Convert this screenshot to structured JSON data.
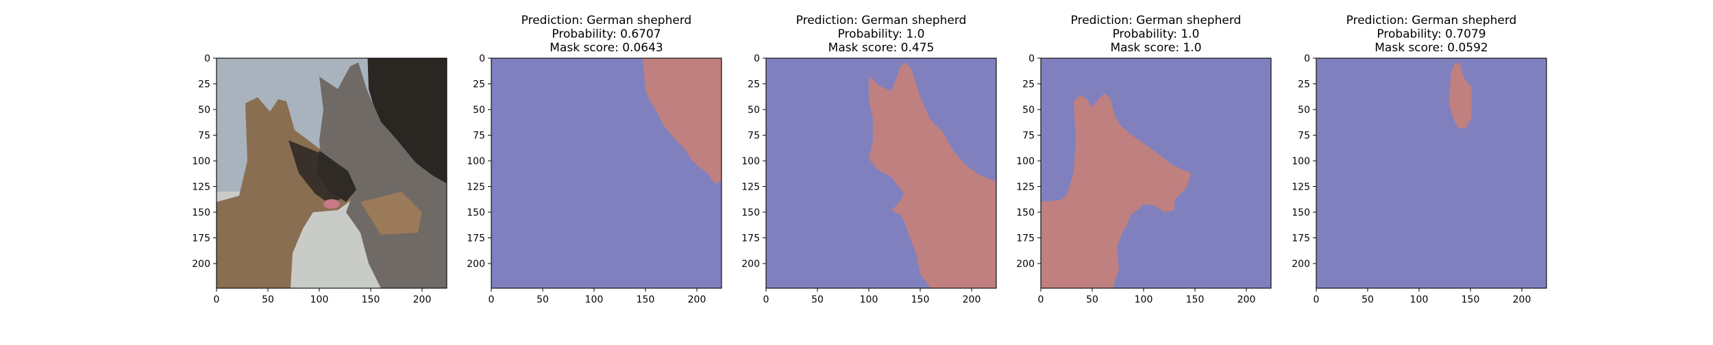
{
  "colors": {
    "mask_background": "#8080bf",
    "mask_foreground": "#bf807f",
    "photo_sky": "#a9b3bd",
    "photo_dark": "#2a2622",
    "photo_fur_tan": "#8a6e52",
    "photo_fur_gray": "#6f6a66"
  },
  "chart_data": [
    {
      "type": "heatmap",
      "content": "photo",
      "icon": "two-german-shepherd-dogs-photo",
      "xlim": [
        0,
        224
      ],
      "ylim": [
        224,
        0
      ],
      "x_ticks": [
        "0",
        "50",
        "100",
        "150",
        "200"
      ],
      "y_ticks": [
        "0",
        "25",
        "50",
        "75",
        "100",
        "125",
        "150",
        "175",
        "200"
      ],
      "x_tick_values": [
        0,
        50,
        100,
        150,
        200
      ],
      "y_tick_values": [
        0,
        25,
        50,
        75,
        100,
        125,
        150,
        175,
        200
      ],
      "title_lines": []
    },
    {
      "type": "heatmap",
      "content": "mask",
      "title_lines": [
        "Prediction: German shepherd",
        "Probability: 0.6707",
        "Mask score: 0.0643"
      ],
      "xlim": [
        0,
        224
      ],
      "ylim": [
        224,
        0
      ],
      "x_ticks": [
        "0",
        "50",
        "100",
        "150",
        "200"
      ],
      "y_ticks": [
        "0",
        "25",
        "50",
        "75",
        "100",
        "125",
        "150",
        "175",
        "200"
      ],
      "x_tick_values": [
        0,
        50,
        100,
        150,
        200
      ],
      "y_tick_values": [
        0,
        25,
        50,
        75,
        100,
        125,
        150,
        175,
        200
      ],
      "mask_region": [
        [
          147,
          0
        ],
        [
          224,
          0
        ],
        [
          224,
          120
        ],
        [
          218,
          122
        ],
        [
          210,
          112
        ],
        [
          200,
          104
        ],
        [
          194,
          98
        ],
        [
          188,
          88
        ],
        [
          178,
          78
        ],
        [
          168,
          66
        ],
        [
          162,
          54
        ],
        [
          155,
          42
        ],
        [
          150,
          32
        ],
        [
          149,
          18
        ]
      ]
    },
    {
      "type": "heatmap",
      "content": "mask",
      "title_lines": [
        "Prediction: German shepherd",
        "Probability: 1.0",
        "Mask score: 0.475"
      ],
      "xlim": [
        0,
        224
      ],
      "ylim": [
        224,
        0
      ],
      "x_ticks": [
        "0",
        "50",
        "100",
        "150",
        "200"
      ],
      "y_ticks": [
        "0",
        "25",
        "50",
        "75",
        "100",
        "125",
        "150",
        "175",
        "200"
      ],
      "x_tick_values": [
        0,
        50,
        100,
        150,
        200
      ],
      "y_tick_values": [
        0,
        25,
        50,
        75,
        100,
        125,
        150,
        175,
        200
      ],
      "mask_region": [
        [
          100,
          17
        ],
        [
          110,
          27
        ],
        [
          122,
          32
        ],
        [
          131,
          8
        ],
        [
          136,
          4
        ],
        [
          142,
          12
        ],
        [
          150,
          38
        ],
        [
          160,
          60
        ],
        [
          172,
          72
        ],
        [
          182,
          90
        ],
        [
          194,
          104
        ],
        [
          208,
          114
        ],
        [
          224,
          120
        ],
        [
          224,
          224
        ],
        [
          160,
          224
        ],
        [
          150,
          210
        ],
        [
          146,
          190
        ],
        [
          140,
          175
        ],
        [
          135,
          160
        ],
        [
          130,
          152
        ],
        [
          122,
          148
        ],
        [
          130,
          140
        ],
        [
          134,
          132
        ],
        [
          122,
          116
        ],
        [
          108,
          108
        ],
        [
          100,
          98
        ],
        [
          104,
          80
        ],
        [
          104,
          60
        ],
        [
          100,
          40
        ]
      ]
    },
    {
      "type": "heatmap",
      "content": "mask",
      "title_lines": [
        "Prediction: German shepherd",
        "Probability: 1.0",
        "Mask score: 1.0"
      ],
      "xlim": [
        0,
        224
      ],
      "ylim": [
        224,
        0
      ],
      "x_ticks": [
        "0",
        "50",
        "100",
        "150",
        "200"
      ],
      "y_ticks": [
        "0",
        "25",
        "50",
        "75",
        "100",
        "125",
        "150",
        "175",
        "200"
      ],
      "x_tick_values": [
        0,
        50,
        100,
        150,
        200
      ],
      "y_tick_values": [
        0,
        25,
        50,
        75,
        100,
        125,
        150,
        175,
        200
      ],
      "mask_region": [
        [
          32,
          42
        ],
        [
          38,
          36
        ],
        [
          45,
          40
        ],
        [
          50,
          48
        ],
        [
          56,
          40
        ],
        [
          62,
          34
        ],
        [
          68,
          40
        ],
        [
          72,
          56
        ],
        [
          78,
          66
        ],
        [
          90,
          76
        ],
        [
          110,
          90
        ],
        [
          128,
          104
        ],
        [
          146,
          112
        ],
        [
          142,
          126
        ],
        [
          130,
          138
        ],
        [
          130,
          148
        ],
        [
          120,
          150
        ],
        [
          112,
          144
        ],
        [
          100,
          142
        ],
        [
          94,
          148
        ],
        [
          88,
          152
        ],
        [
          84,
          162
        ],
        [
          80,
          168
        ],
        [
          74,
          184
        ],
        [
          76,
          205
        ],
        [
          70,
          224
        ],
        [
          0,
          224
        ],
        [
          0,
          140
        ],
        [
          20,
          138
        ],
        [
          26,
          132
        ],
        [
          32,
          110
        ],
        [
          34,
          80
        ]
      ]
    },
    {
      "type": "heatmap",
      "content": "mask",
      "title_lines": [
        "Prediction: German shepherd",
        "Probability: 0.7079",
        "Mask score: 0.0592"
      ],
      "xlim": [
        0,
        224
      ],
      "ylim": [
        224,
        0
      ],
      "x_ticks": [
        "0",
        "50",
        "100",
        "150",
        "200"
      ],
      "y_ticks": [
        "0",
        "25",
        "50",
        "75",
        "100",
        "125",
        "150",
        "175",
        "200"
      ],
      "x_tick_values": [
        0,
        50,
        100,
        150,
        200
      ],
      "y_tick_values": [
        0,
        25,
        50,
        75,
        100,
        125,
        150,
        175,
        200
      ],
      "mask_region": [
        [
          131,
          16
        ],
        [
          135,
          4
        ],
        [
          140,
          6
        ],
        [
          144,
          20
        ],
        [
          151,
          28
        ],
        [
          151,
          58
        ],
        [
          146,
          68
        ],
        [
          138,
          68
        ],
        [
          133,
          58
        ],
        [
          129,
          44
        ]
      ]
    }
  ]
}
